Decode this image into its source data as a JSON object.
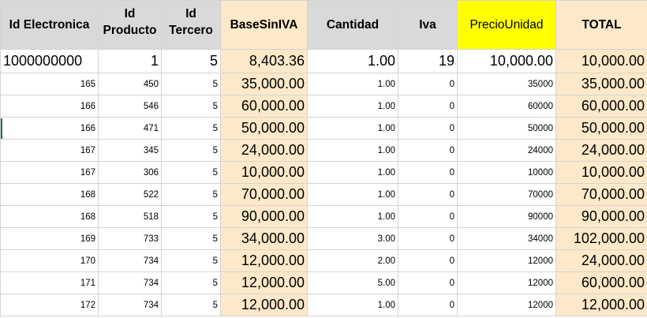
{
  "columns": [
    "Id Electronica",
    "Id Producto",
    "Id Tercero",
    "BaseSinIVA",
    "Cantidad",
    "Iva",
    "PrecioUnidad",
    "TOTAL"
  ],
  "header_lines": {
    "id_producto": [
      "Id",
      "Producto"
    ],
    "id_tercero": [
      "Id",
      "Tercero"
    ]
  },
  "colors": {
    "peach": "#fde9c9",
    "yellow": "#ffff00",
    "header_gray": "#d9d9d9"
  },
  "first_row": [
    "1000000000",
    "1",
    "5",
    "8,403.36",
    "1.00",
    "19",
    "10,000.00",
    "10,000.00"
  ],
  "rows": [
    [
      "165",
      "450",
      "5",
      "35,000.00",
      "1.00",
      "0",
      "35000",
      "35,000.00"
    ],
    [
      "166",
      "546",
      "5",
      "60,000.00",
      "1.00",
      "0",
      "60000",
      "60,000.00"
    ],
    [
      "166",
      "471",
      "5",
      "50,000.00",
      "1.00",
      "0",
      "50000",
      "50,000.00"
    ],
    [
      "167",
      "345",
      "5",
      "24,000.00",
      "1.00",
      "0",
      "24000",
      "24,000.00"
    ],
    [
      "167",
      "306",
      "5",
      "10,000.00",
      "1.00",
      "0",
      "10000",
      "10,000.00"
    ],
    [
      "168",
      "522",
      "5",
      "70,000.00",
      "1.00",
      "0",
      "70000",
      "70,000.00"
    ],
    [
      "168",
      "518",
      "5",
      "90,000.00",
      "1.00",
      "0",
      "90000",
      "90,000.00"
    ],
    [
      "169",
      "733",
      "5",
      "34,000.00",
      "3.00",
      "0",
      "34000",
      "102,000.00"
    ],
    [
      "170",
      "734",
      "5",
      "12,000.00",
      "2.00",
      "0",
      "12000",
      "24,000.00"
    ],
    [
      "171",
      "734",
      "5",
      "12,000.00",
      "5.00",
      "0",
      "12000",
      "60,000.00"
    ],
    [
      "172",
      "734",
      "5",
      "12,000.00",
      "1.00",
      "0",
      "12000",
      "12,000.00"
    ]
  ]
}
